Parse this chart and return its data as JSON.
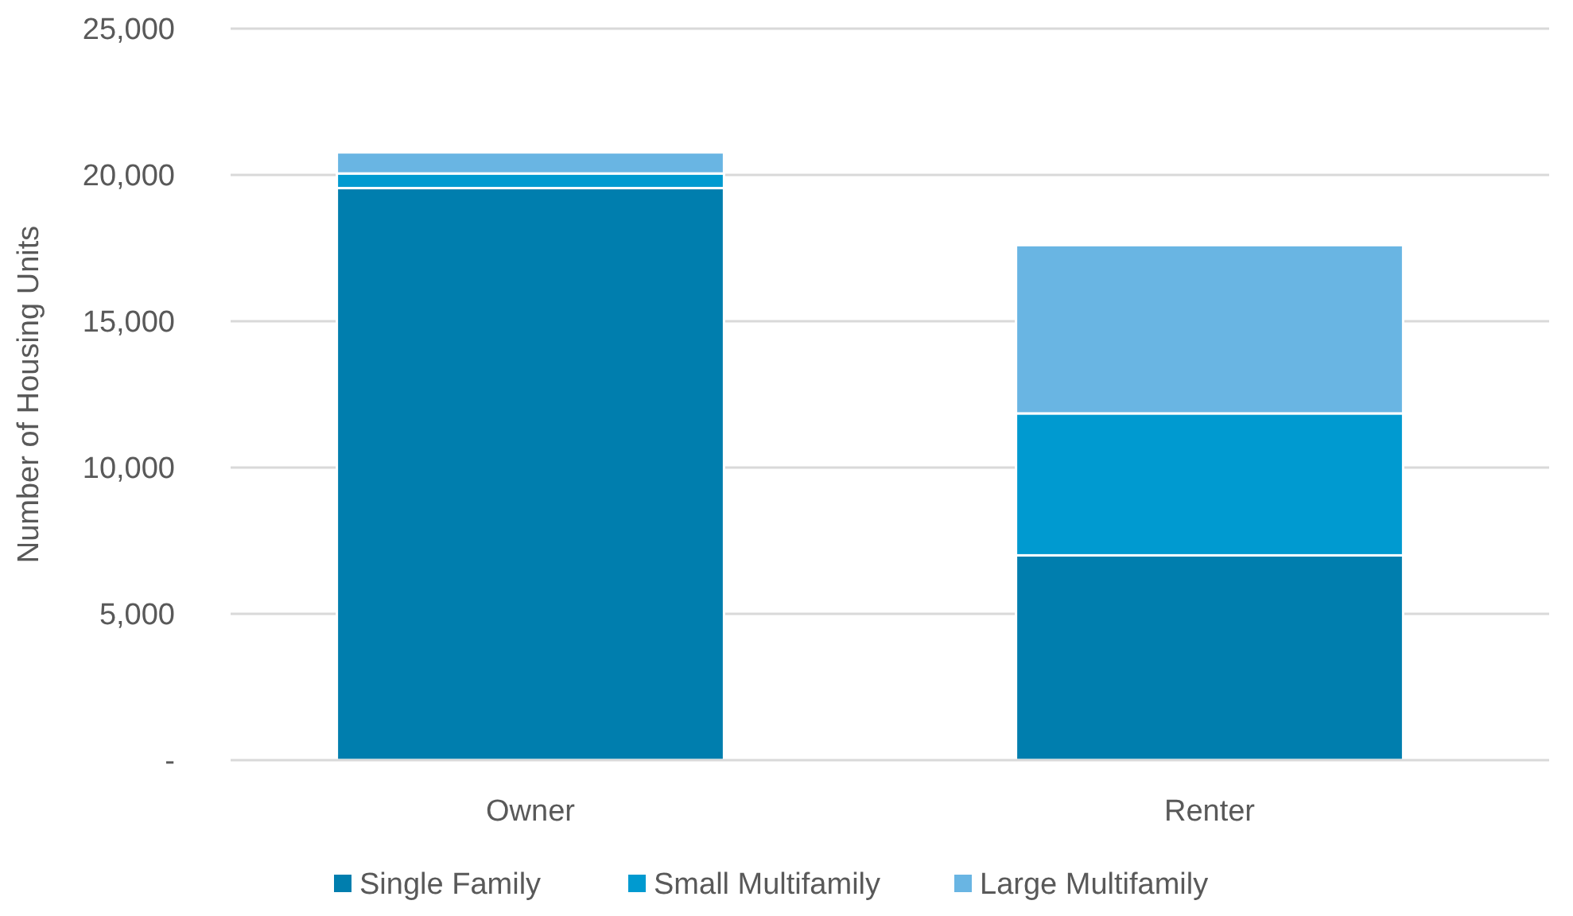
{
  "chart_data": {
    "type": "bar",
    "stacked": true,
    "ylabel": "Number of Housing Units",
    "categories": [
      "Owner",
      "Renter"
    ],
    "series": [
      {
        "name": "Single Family",
        "color": "#007eae",
        "values": [
          19550,
          7000
        ]
      },
      {
        "name": "Small Multifamily",
        "color": "#009ad0",
        "values": [
          500,
          4850
        ]
      },
      {
        "name": "Large Multifamily",
        "color": "#69b5e3",
        "values": [
          720,
          5750
        ]
      }
    ],
    "ylim": [
      0,
      25000
    ],
    "yticks": [
      {
        "value": 0,
        "label": "-"
      },
      {
        "value": 5000,
        "label": "5,000"
      },
      {
        "value": 10000,
        "label": "10,000"
      },
      {
        "value": 15000,
        "label": "15,000"
      },
      {
        "value": 20000,
        "label": "20,000"
      },
      {
        "value": 25000,
        "label": "25,000"
      }
    ],
    "grid": "y",
    "legend": "bottom"
  }
}
